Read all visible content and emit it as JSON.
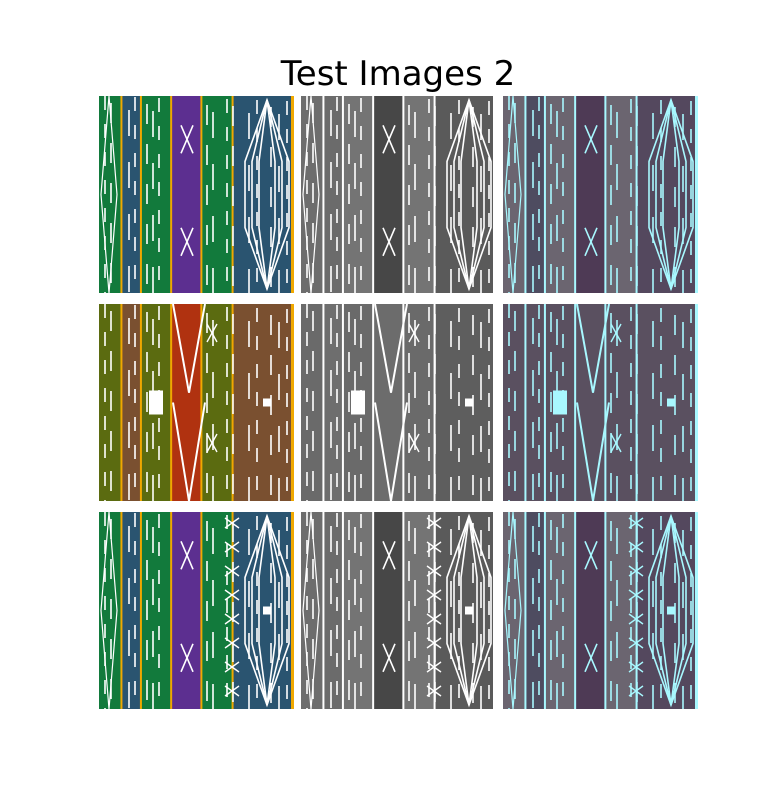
{
  "figure": {
    "title": "Test Images 2"
  },
  "palettes": {
    "color": {
      "background": "#ffffff",
      "accent": "#f0a800",
      "line": "#ffffff"
    },
    "gray": {
      "line": "#ffffff"
    },
    "tinted": {
      "line": "#a8f8ff"
    }
  },
  "rows": [
    {
      "name": "row-1",
      "bands": {
        "color": [
          "#127a3c",
          "#2a5470",
          "#127a3c",
          "#5c2f90",
          "#127a3c",
          "#2a5470"
        ],
        "gray": [
          "#6d6d6d",
          "#6b6b6b",
          "#747474",
          "#474747",
          "#747474",
          "#5a5a5a"
        ],
        "tinted": [
          "#6b6570",
          "#4e4c60",
          "#6b6570",
          "#4e3a55",
          "#6b6570",
          "#54485e"
        ]
      },
      "pattern": "diamond-and-x"
    },
    {
      "name": "row-2",
      "bands": {
        "color": [
          "#5b6b10",
          "#7a5030",
          "#5b6b10",
          "#b03210",
          "#5b6b10",
          "#7a5030"
        ],
        "gray": [
          "#6a6a6a",
          "#6e6e6e",
          "#6a6a6a",
          "#6c6c6c",
          "#6a6a6a",
          "#5e5e5e"
        ],
        "tinted": [
          "#5a5060",
          "#5a5060",
          "#5a5060",
          "#5a5060",
          "#5a5060",
          "#5a5060"
        ]
      },
      "pattern": "chevron"
    },
    {
      "name": "row-3",
      "bands": {
        "color": [
          "#127a3c",
          "#2a5470",
          "#127a3c",
          "#5c2f90",
          "#127a3c",
          "#2a5470"
        ],
        "gray": [
          "#6d6d6d",
          "#6b6b6b",
          "#747474",
          "#474747",
          "#747474",
          "#5a5a5a"
        ],
        "tinted": [
          "#6b6570",
          "#4e4c60",
          "#6b6570",
          "#4e3a55",
          "#6b6570",
          "#54485e"
        ]
      },
      "pattern": "double-diamond"
    }
  ]
}
